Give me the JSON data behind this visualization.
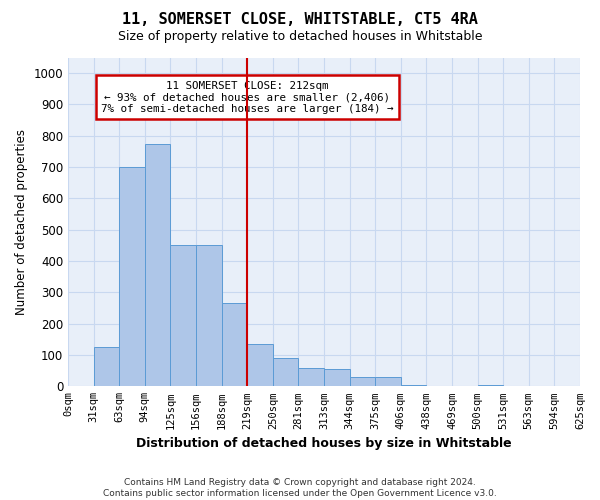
{
  "title": "11, SOMERSET CLOSE, WHITSTABLE, CT5 4RA",
  "subtitle": "Size of property relative to detached houses in Whitstable",
  "xlabel": "Distribution of detached houses by size in Whitstable",
  "ylabel": "Number of detached properties",
  "footer1": "Contains HM Land Registry data © Crown copyright and database right 2024.",
  "footer2": "Contains public sector information licensed under the Open Government Licence v3.0.",
  "bin_labels": [
    "0sqm",
    "31sqm",
    "63sqm",
    "94sqm",
    "125sqm",
    "156sqm",
    "188sqm",
    "219sqm",
    "250sqm",
    "281sqm",
    "313sqm",
    "344sqm",
    "375sqm",
    "406sqm",
    "438sqm",
    "469sqm",
    "500sqm",
    "531sqm",
    "563sqm",
    "594sqm",
    "625sqm"
  ],
  "bar_values": [
    0,
    125,
    700,
    775,
    450,
    450,
    265,
    135,
    90,
    60,
    55,
    30,
    30,
    5,
    0,
    0,
    5,
    0,
    0,
    0
  ],
  "bar_color": "#aec6e8",
  "bar_edge_color": "#5b9bd5",
  "grid_color": "#c8d8f0",
  "bg_color": "#e8eff9",
  "vline_color": "#cc0000",
  "annotation_box_color": "#cc0000",
  "ylim": [
    0,
    1050
  ],
  "yticks": [
    0,
    100,
    200,
    300,
    400,
    500,
    600,
    700,
    800,
    900,
    1000
  ]
}
